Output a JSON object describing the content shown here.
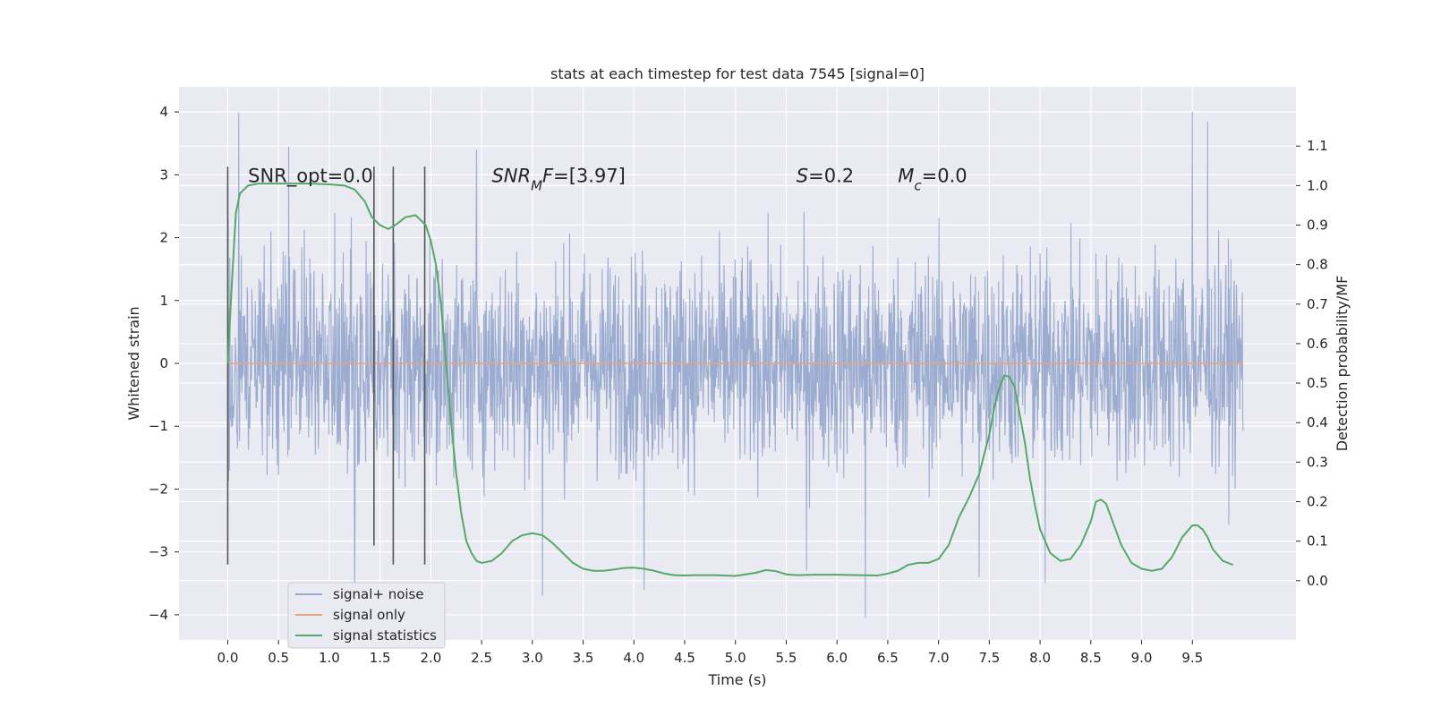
{
  "chart_data": {
    "type": "line",
    "title": "stats at each timestep for test data 7545 [signal=0]",
    "xlabel": "Time (s)",
    "ylabel": "Whitened strain",
    "y2label": "Detection probability/MF",
    "xlim": [
      -0.48,
      10.52
    ],
    "ylim": [
      -4.4,
      4.4
    ],
    "y2lim": [
      -0.15,
      1.25
    ],
    "xticks": [
      0.0,
      0.5,
      1.0,
      1.5,
      2.0,
      2.5,
      3.0,
      3.5,
      4.0,
      4.5,
      5.0,
      5.5,
      6.0,
      6.5,
      7.0,
      7.5,
      8.0,
      8.5,
      9.0,
      9.5
    ],
    "xtick_labels": [
      "0.0",
      "0.5",
      "1.0",
      "1.5",
      "2.0",
      "2.5",
      "3.0",
      "3.5",
      "4.0",
      "4.5",
      "5.0",
      "5.5",
      "6.0",
      "6.5",
      "7.0",
      "7.5",
      "8.0",
      "8.5",
      "9.0",
      "9.5"
    ],
    "yticks": [
      -4,
      -3,
      -2,
      -1,
      0,
      1,
      2,
      3,
      4
    ],
    "ytick_labels": [
      "−4",
      "−3",
      "−2",
      "−1",
      "0",
      "1",
      "2",
      "3",
      "4"
    ],
    "y2ticks": [
      0.0,
      0.1,
      0.2,
      0.3,
      0.4,
      0.5,
      0.6,
      0.7,
      0.8,
      0.9,
      1.0,
      1.1
    ],
    "y2tick_labels": [
      "0.0",
      "0.1",
      "0.2",
      "0.3",
      "0.4",
      "0.5",
      "0.6",
      "0.7",
      "0.8",
      "0.9",
      "1.0",
      "1.1"
    ],
    "grid": true,
    "legend_position": "bottom-left",
    "colors": {
      "noise": "#98a9cd",
      "signal_only": "#e8a37f",
      "statistics": "#55a868",
      "plot_bg": "#eaeaf2",
      "grid": "#ffffff",
      "marker_line": "#555555"
    },
    "noise_series": {
      "name": "signal+ noise",
      "t_range": [
        0.0,
        10.0
      ],
      "typical_envelope": [
        -1.9,
        1.9
      ],
      "peak_examples": [
        {
          "t": 0.11,
          "y": 3.99
        },
        {
          "t": 9.5,
          "y": 4.0
        },
        {
          "t": 0.6,
          "y": 3.45
        },
        {
          "t": 2.45,
          "y": 3.4
        },
        {
          "t": 9.65,
          "y": 3.85
        },
        {
          "t": 6.28,
          "y": -4.05
        },
        {
          "t": 3.1,
          "y": -3.7
        },
        {
          "t": 4.1,
          "y": -3.6
        },
        {
          "t": 1.25,
          "y": -3.55
        },
        {
          "t": 5.7,
          "y": -3.3
        },
        {
          "t": 8.05,
          "y": -3.5
        },
        {
          "t": 7.4,
          "y": -3.4
        }
      ]
    },
    "signal_series": {
      "name": "signal only",
      "value": 0.0,
      "t_range": [
        0.0,
        10.0
      ]
    },
    "statistics_series": {
      "name": "signal statistics",
      "t": [
        0.0,
        0.04,
        0.08,
        0.12,
        0.2,
        0.3,
        0.5,
        0.8,
        1.0,
        1.15,
        1.25,
        1.35,
        1.42,
        1.5,
        1.58,
        1.65,
        1.75,
        1.85,
        1.95,
        2.0,
        2.05,
        2.1,
        2.15,
        2.2,
        2.25,
        2.3,
        2.35,
        2.4,
        2.45,
        2.5,
        2.6,
        2.7,
        2.8,
        2.9,
        3.0,
        3.1,
        3.2,
        3.3,
        3.4,
        3.5,
        3.6,
        3.7,
        3.8,
        3.9,
        4.0,
        4.1,
        4.2,
        4.3,
        4.4,
        4.5,
        4.6,
        4.8,
        5.0,
        5.2,
        5.3,
        5.4,
        5.5,
        5.6,
        5.8,
        6.0,
        6.2,
        6.4,
        6.5,
        6.6,
        6.7,
        6.8,
        6.9,
        7.0,
        7.1,
        7.2,
        7.3,
        7.4,
        7.5,
        7.55,
        7.6,
        7.65,
        7.7,
        7.75,
        7.8,
        7.85,
        7.9,
        7.95,
        8.0,
        8.1,
        8.2,
        8.3,
        8.4,
        8.5,
        8.55,
        8.6,
        8.65,
        8.7,
        8.8,
        8.9,
        9.0,
        9.1,
        9.2,
        9.3,
        9.4,
        9.5,
        9.55,
        9.6,
        9.65,
        9.7,
        9.8,
        9.9
      ],
      "y": [
        0.55,
        0.75,
        0.93,
        0.98,
        1.0,
        1.005,
        1.005,
        1.005,
        1.003,
        1.0,
        0.99,
        0.96,
        0.92,
        0.9,
        0.89,
        0.9,
        0.92,
        0.925,
        0.9,
        0.86,
        0.8,
        0.7,
        0.55,
        0.4,
        0.27,
        0.17,
        0.1,
        0.07,
        0.05,
        0.045,
        0.05,
        0.07,
        0.1,
        0.115,
        0.12,
        0.115,
        0.095,
        0.07,
        0.045,
        0.03,
        0.025,
        0.025,
        0.028,
        0.032,
        0.033,
        0.03,
        0.025,
        0.018,
        0.014,
        0.013,
        0.014,
        0.014,
        0.012,
        0.02,
        0.027,
        0.024,
        0.016,
        0.014,
        0.015,
        0.015,
        0.014,
        0.013,
        0.018,
        0.025,
        0.04,
        0.045,
        0.045,
        0.055,
        0.09,
        0.16,
        0.21,
        0.27,
        0.37,
        0.44,
        0.49,
        0.52,
        0.515,
        0.49,
        0.42,
        0.35,
        0.26,
        0.19,
        0.13,
        0.07,
        0.05,
        0.055,
        0.09,
        0.15,
        0.2,
        0.205,
        0.195,
        0.16,
        0.09,
        0.045,
        0.03,
        0.025,
        0.03,
        0.06,
        0.11,
        0.14,
        0.14,
        0.13,
        0.11,
        0.08,
        0.05,
        0.04
      ]
    },
    "vertical_markers": [
      {
        "t": 0.0,
        "y_range": [
          -3.2,
          3.13
        ]
      },
      {
        "t": 1.44,
        "y_range": [
          -2.9,
          3.13
        ]
      },
      {
        "t": 1.63,
        "y_range": [
          -3.2,
          3.13
        ]
      },
      {
        "t": 1.94,
        "y_range": [
          -3.2,
          3.13
        ]
      }
    ],
    "annotations": [
      {
        "segments": [
          {
            "text": "SNR_opt=0.0",
            "italic": false
          }
        ],
        "t": 0.2,
        "y": 3.0
      },
      {
        "segments": [
          {
            "text": "SNR",
            "italic": true
          },
          {
            "text": "M",
            "italic": true,
            "sub": true
          },
          {
            "text": "F",
            "italic": true
          },
          {
            "text": "=[3.97]",
            "italic": false
          }
        ],
        "t": 2.6,
        "y": 3.0
      },
      {
        "segments": [
          {
            "text": "S",
            "italic": true
          },
          {
            "text": "=0.2",
            "italic": false
          }
        ],
        "t": 5.6,
        "y": 3.0
      },
      {
        "segments": [
          {
            "text": "M",
            "italic": true
          },
          {
            "text": "c",
            "italic": true,
            "sub": true
          },
          {
            "text": "=0.0",
            "italic": false
          }
        ],
        "t": 6.6,
        "y": 3.0
      }
    ],
    "legend": [
      {
        "label": "signal+ noise",
        "color": "#98a9cd"
      },
      {
        "label": "signal only",
        "color": "#e8a37f"
      },
      {
        "label": "signal statistics",
        "color": "#55a868"
      }
    ]
  }
}
